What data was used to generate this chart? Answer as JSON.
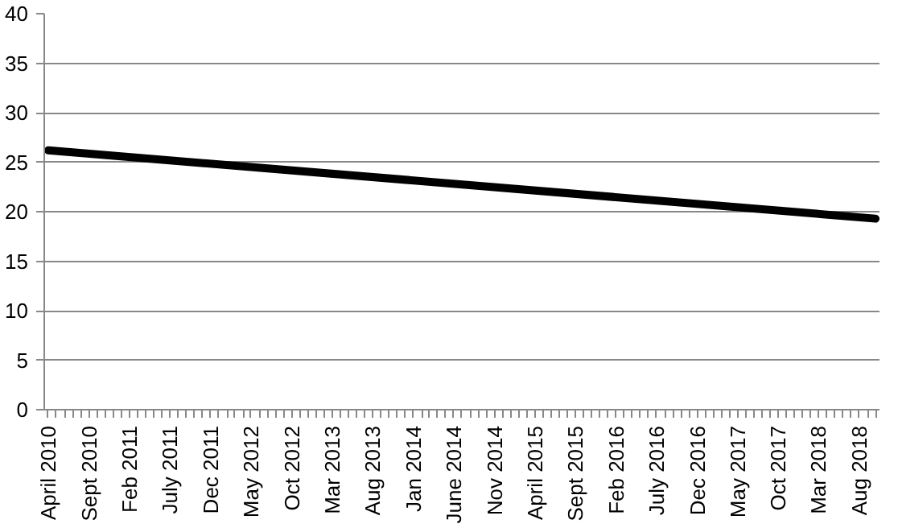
{
  "chart_data": {
    "type": "line",
    "x": [
      "2010-04",
      "2018-10"
    ],
    "series": [
      {
        "color": "#000000",
        "values": [
          26.2,
          19.3
        ]
      }
    ],
    "xlim": [
      "2010-03-17",
      "2018-10-16"
    ],
    "xticks": [
      {
        "value": "2010-04",
        "label": "April 2010"
      },
      {
        "value": "2010-09",
        "label": "Sept 2010"
      },
      {
        "value": "2011-02",
        "label": "Feb 2011"
      },
      {
        "value": "2011-07",
        "label": "July 2011"
      },
      {
        "value": "2011-12",
        "label": "Dec 2011"
      },
      {
        "value": "2012-05",
        "label": "May 2012"
      },
      {
        "value": "2012-10",
        "label": "Oct 2012"
      },
      {
        "value": "2013-03",
        "label": "Mar 2013"
      },
      {
        "value": "2013-08",
        "label": "Aug 2013"
      },
      {
        "value": "2014-01",
        "label": "Jan 2014"
      },
      {
        "value": "2014-06",
        "label": "June 2014"
      },
      {
        "value": "2014-11",
        "label": "Nov 2014"
      },
      {
        "value": "2015-04",
        "label": "April 2015"
      },
      {
        "value": "2015-09",
        "label": "Sept 2015"
      },
      {
        "value": "2016-02",
        "label": "Feb 2016"
      },
      {
        "value": "2016-07",
        "label": "July 2016"
      },
      {
        "value": "2016-12",
        "label": "Dec 2016"
      },
      {
        "value": "2017-05",
        "label": "May 2017"
      },
      {
        "value": "2017-10",
        "label": "Oct 2017"
      },
      {
        "value": "2018-03",
        "label": "Mar 2018"
      },
      {
        "value": "2018-08",
        "label": "Aug 2018"
      }
    ],
    "ylim": [
      0,
      40
    ],
    "yticks": [
      0,
      5,
      10,
      15,
      20,
      25,
      30,
      35,
      40
    ],
    "grid": "y",
    "line_style": "solid"
  }
}
